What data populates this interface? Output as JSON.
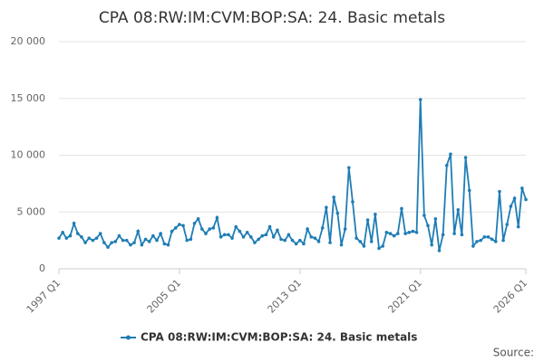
{
  "chart_data": {
    "type": "line",
    "title": "CPA 08:RW:IM:CVM:BOP:SA: 24. Basic metals",
    "source_label": "Source:",
    "categories": [
      "1997 Q1",
      null,
      null,
      null,
      null,
      null,
      null,
      null,
      null,
      null,
      null,
      null,
      null,
      null,
      null,
      null,
      null,
      null,
      null,
      null,
      null,
      null,
      null,
      null,
      null,
      null,
      null,
      null,
      null,
      null,
      null,
      null,
      "2005 Q1",
      null,
      null,
      null,
      null,
      null,
      null,
      null,
      null,
      null,
      null,
      null,
      null,
      null,
      null,
      null,
      null,
      null,
      null,
      null,
      null,
      null,
      null,
      null,
      null,
      null,
      null,
      null,
      null,
      null,
      null,
      null,
      "2013 Q1",
      null,
      null,
      null,
      null,
      null,
      null,
      null,
      null,
      null,
      null,
      null,
      null,
      null,
      null,
      null,
      null,
      null,
      null,
      null,
      null,
      null,
      null,
      null,
      null,
      null,
      null,
      null,
      null,
      null,
      null,
      null,
      "2021 Q1",
      null,
      null,
      null,
      null,
      null,
      null,
      null,
      null,
      null,
      null,
      null,
      null,
      null,
      null,
      null,
      null,
      null,
      null,
      null,
      null,
      null,
      null,
      null,
      null,
      null,
      null,
      null,
      "2026 Q1"
    ],
    "series": [
      {
        "name": "CPA 08:RW:IM:CVM:BOP:SA: 24. Basic metals",
        "color": "#1f7db5",
        "values": [
          2700,
          3200,
          2700,
          2900,
          4000,
          3100,
          2800,
          2300,
          2700,
          2500,
          2700,
          3100,
          2300,
          1900,
          2300,
          2400,
          2900,
          2500,
          2500,
          2100,
          2300,
          3300,
          2100,
          2600,
          2400,
          2900,
          2500,
          3100,
          2200,
          2100,
          3300,
          3600,
          3900,
          3800,
          2500,
          2600,
          4000,
          4400,
          3500,
          3100,
          3500,
          3600,
          4500,
          2800,
          3000,
          3000,
          2700,
          3700,
          3300,
          2800,
          3200,
          2800,
          2300,
          2600,
          2900,
          3000,
          3700,
          2800,
          3400,
          2600,
          2500,
          3000,
          2500,
          2200,
          2500,
          2200,
          3500,
          2800,
          2700,
          2400,
          3600,
          5400,
          2300,
          6300,
          4900,
          2100,
          3500,
          8900,
          5900,
          2700,
          2400,
          2000,
          4300,
          2400,
          4800,
          1800,
          2000,
          3200,
          3100,
          2900,
          3100,
          5300,
          3100,
          3200,
          3300,
          3200,
          14900,
          4700,
          3800,
          2100,
          4400,
          1600,
          3000,
          9100,
          10100,
          3100,
          5200,
          3000,
          9800,
          6900,
          2000,
          2400,
          2500,
          2800,
          2800,
          2600,
          2400,
          6800,
          2500,
          3900,
          5500,
          6200,
          3700,
          7100,
          6100
        ]
      }
    ],
    "ylim": [
      0,
      20000
    ],
    "yticks": [
      0,
      {
        "value": 5000,
        "label": "5 000"
      },
      {
        "value": 10000,
        "label": "10 000"
      },
      {
        "value": 15000,
        "label": "15 000"
      },
      {
        "value": 20000,
        "label": "20 000"
      }
    ],
    "grid": true
  }
}
